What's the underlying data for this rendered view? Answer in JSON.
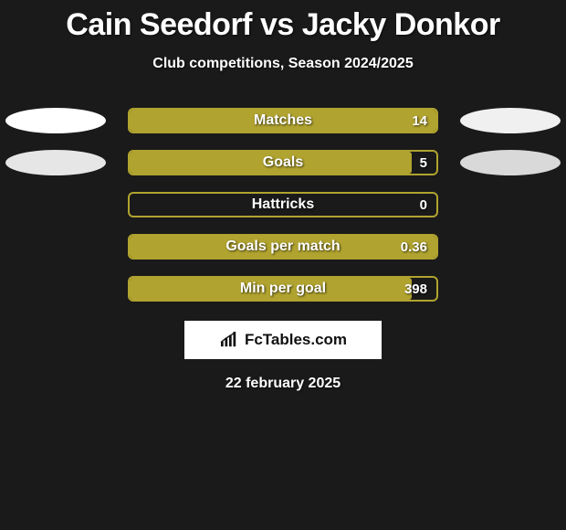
{
  "title": "Cain Seedorf vs Jacky Donkor",
  "subtitle": "Club competitions, Season 2024/2025",
  "date": "22 february 2025",
  "brand": {
    "name": "FcTables.com"
  },
  "colors": {
    "bar_border": "#b0a32f",
    "bar_fill": "#b0a32f",
    "ellipse_left_1": "#ffffff",
    "ellipse_left_2": "#e6e6e6",
    "ellipse_right_1": "#f0f0f0",
    "ellipse_right_2": "#d9d9d9",
    "background": "#1a1a1a"
  },
  "stats": [
    {
      "label": "Matches",
      "value": "14",
      "fill_pct": 100,
      "ellipses": true,
      "ellipse_left": "#ffffff",
      "ellipse_right": "#f0f0f0"
    },
    {
      "label": "Goals",
      "value": "5",
      "fill_pct": 92,
      "ellipses": true,
      "ellipse_left": "#e6e6e6",
      "ellipse_right": "#d9d9d9"
    },
    {
      "label": "Hattricks",
      "value": "0",
      "fill_pct": 0,
      "ellipses": false
    },
    {
      "label": "Goals per match",
      "value": "0.36",
      "fill_pct": 100,
      "ellipses": false
    },
    {
      "label": "Min per goal",
      "value": "398",
      "fill_pct": 92,
      "ellipses": false
    }
  ]
}
